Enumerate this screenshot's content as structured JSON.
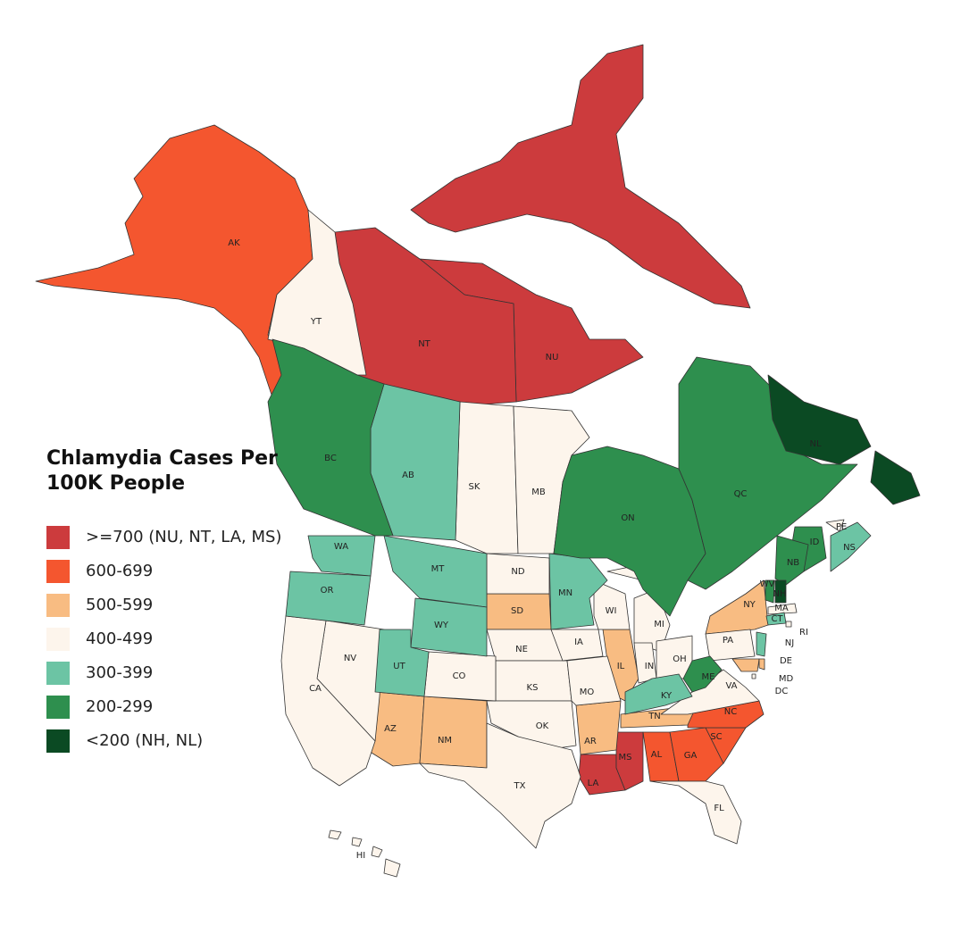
{
  "title": "Chlamydia Cases Per 100K People",
  "legend": [
    {
      "label": ">=700 (NU, NT, LA, MS)",
      "color": "#cc3b3d",
      "regions": [
        "NU",
        "NT",
        "LA",
        "MS"
      ]
    },
    {
      "label": "600-699",
      "color": "#f4562f",
      "regions": [
        "AK",
        "AL",
        "GA",
        "SC",
        "NC"
      ]
    },
    {
      "label": "500-599",
      "color": "#f8bc82",
      "regions": [
        "NY",
        "SD",
        "IL",
        "AZ",
        "NM",
        "AR",
        "TN",
        "MD",
        "DE"
      ]
    },
    {
      "label": "400-499",
      "color": "#fdf5ec",
      "regions": [
        "YT",
        "SK",
        "MB",
        "ND",
        "NE",
        "KS",
        "OK",
        "TX",
        "CO",
        "NV",
        "CA",
        "IA",
        "MO",
        "WI",
        "MI",
        "IN",
        "OH",
        "PA",
        "VA",
        "FL",
        "HI",
        "PE",
        "MA",
        "RI",
        "DC"
      ]
    },
    {
      "label": "300-399",
      "color": "#6cc4a4",
      "regions": [
        "AB",
        "WA",
        "OR",
        "MT",
        "WY",
        "UT",
        "MN",
        "KY",
        "CT",
        "NJ",
        "NS"
      ]
    },
    {
      "label": "200-299",
      "color": "#2e8f4e",
      "regions": [
        "BC",
        "ON",
        "QC",
        "ID",
        "NB",
        "ME",
        "WV",
        "VT"
      ]
    },
    {
      "label": "<200 (NH, NL)",
      "color": "#0b4a23",
      "regions": [
        "NH",
        "NL"
      ]
    }
  ]
}
